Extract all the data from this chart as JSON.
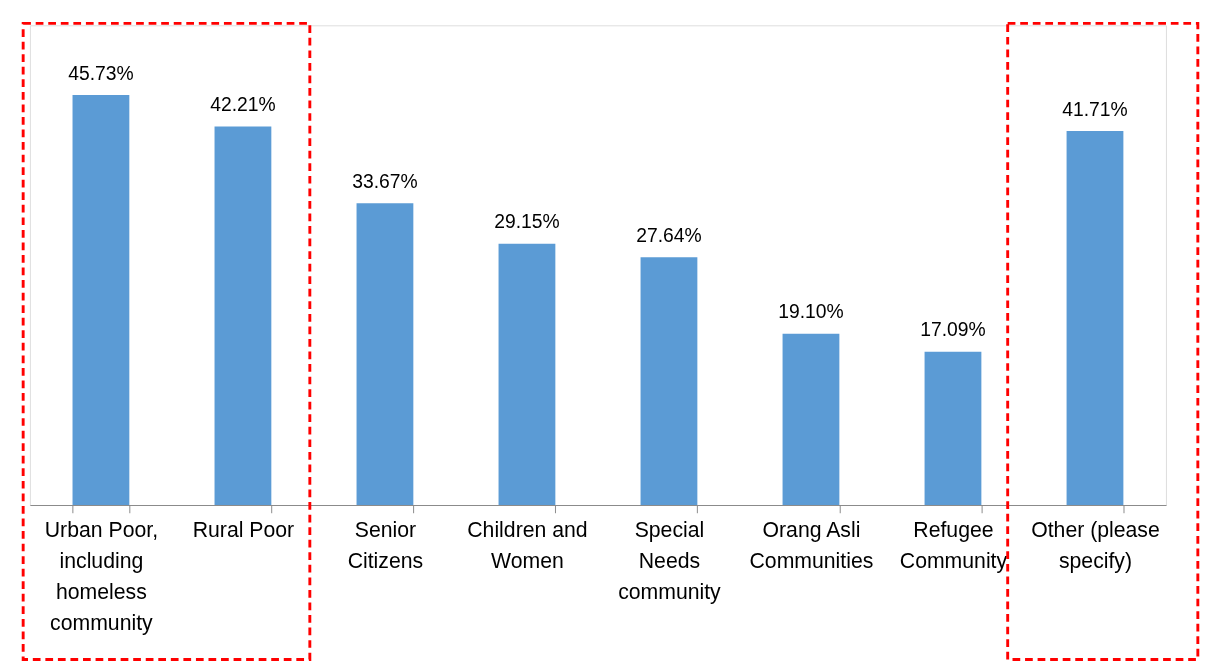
{
  "chart_data": {
    "type": "bar",
    "categories": [
      "Urban Poor,\nincluding\nhomeless\ncommunity",
      "Rural Poor",
      "Senior\nCitizens",
      "Children and\nWomen",
      "Special\nNeeds\ncommunity",
      "Orang Asli\nCommunities",
      "Refugee\nCommunity",
      "Other (please\nspecify)"
    ],
    "values": [
      45.73,
      42.21,
      33.67,
      29.15,
      27.64,
      19.1,
      17.09,
      41.71
    ],
    "value_labels": [
      "45.73%",
      "42.21%",
      "33.67%",
      "29.15%",
      "27.64%",
      "19.10%",
      "17.09%",
      "41.71%"
    ],
    "color": "#5b9bd5"
  }
}
